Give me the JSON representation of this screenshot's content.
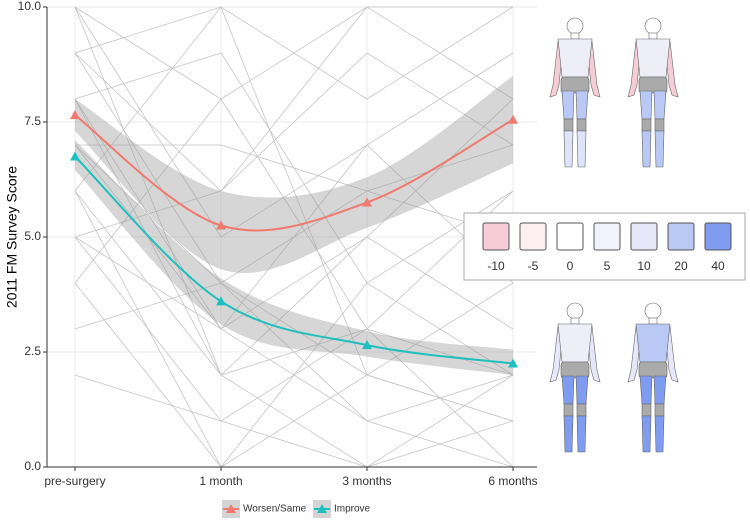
{
  "chart_data": {
    "type": "line",
    "ylabel": "2011 FM Survey Score",
    "categories": [
      "pre-surgery",
      "1 month",
      "3 months",
      "6 months"
    ],
    "ylim": [
      0,
      10
    ],
    "yticks": [
      {
        "value": 0,
        "label": "0.0"
      },
      {
        "value": 2.5,
        "label": "2.5"
      },
      {
        "value": 5,
        "label": "5.0"
      },
      {
        "value": 7.5,
        "label": "7.5"
      },
      {
        "value": 10,
        "label": "10.0"
      }
    ],
    "grid": true,
    "series": [
      {
        "name": "Worsen/Same",
        "color": "#f07a6e",
        "values": [
          7.65,
          5.25,
          5.75,
          7.55
        ],
        "band_lower": [
          7.3,
          4.3,
          5.2,
          6.6
        ],
        "band_upper": [
          8.0,
          6.0,
          6.3,
          8.5
        ]
      },
      {
        "name": "Improve",
        "color": "#1fbfc0",
        "values": [
          6.75,
          3.6,
          2.65,
          2.25
        ],
        "band_lower": [
          6.45,
          3.1,
          2.4,
          2.0
        ],
        "band_upper": [
          7.1,
          4.1,
          2.95,
          2.55
        ]
      }
    ],
    "trajectories": [
      [
        10,
        8,
        10,
        10
      ],
      [
        9,
        4,
        6,
        7
      ],
      [
        8,
        2,
        0,
        1
      ],
      [
        7,
        3,
        5,
        8
      ],
      [
        6,
        10,
        2,
        4
      ],
      [
        5,
        1,
        3,
        2
      ],
      [
        4,
        0,
        2,
        1
      ],
      [
        10,
        5,
        7,
        9
      ],
      [
        8,
        9,
        4,
        6
      ],
      [
        7,
        4,
        1,
        0
      ],
      [
        9,
        10,
        8,
        10
      ],
      [
        6,
        2,
        5,
        3
      ],
      [
        5,
        6,
        9,
        7
      ],
      [
        3,
        4,
        2,
        1
      ],
      [
        8,
        3,
        1,
        2
      ],
      [
        7,
        7,
        6,
        5
      ],
      [
        10,
        2,
        3,
        0
      ],
      [
        6,
        0,
        4,
        2
      ],
      [
        9,
        6,
        10,
        8
      ],
      [
        4,
        8,
        3,
        6
      ],
      [
        2,
        1,
        0,
        2
      ],
      [
        5,
        3,
        7,
        4
      ]
    ],
    "color_scale": {
      "labels": [
        -10,
        -5,
        0,
        5,
        10,
        20,
        40
      ],
      "colors": [
        "#f6cdd6",
        "#fbeff1",
        "#ffffff",
        "#f2f2fc",
        "#e6e8fa",
        "#b9c8f5",
        "#7f9cf0"
      ]
    }
  }
}
